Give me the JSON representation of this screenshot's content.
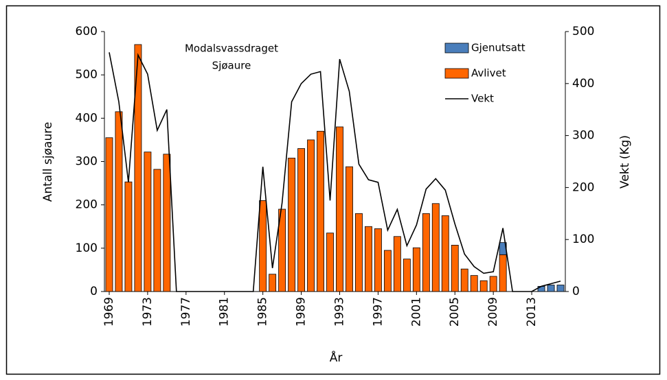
{
  "chart_data": {
    "type": "bar",
    "annotation": [
      "Modalsvassdraget",
      "Sjøaure"
    ],
    "x_label": "År",
    "y_label": "Antall sjøaure",
    "y2_label": "Vekt (Kg)",
    "x": [
      1969,
      1970,
      1971,
      1972,
      1973,
      1974,
      1975,
      1976,
      1977,
      1978,
      1979,
      1980,
      1981,
      1982,
      1983,
      1984,
      1985,
      1986,
      1987,
      1988,
      1989,
      1990,
      1991,
      1992,
      1993,
      1994,
      1995,
      1996,
      1997,
      1998,
      1999,
      2000,
      2001,
      2002,
      2003,
      2004,
      2005,
      2006,
      2007,
      2008,
      2009,
      2010,
      2011,
      2012,
      2013,
      2014,
      2015,
      2016
    ],
    "xlim": [
      1968.5,
      2016.5
    ],
    "xticks": [
      1969,
      1973,
      1977,
      1981,
      1985,
      1989,
      1993,
      1997,
      2001,
      2005,
      2009,
      2013
    ],
    "ylim": [
      0,
      600
    ],
    "yticks": [
      0,
      100,
      200,
      300,
      400,
      500,
      600
    ],
    "y2lim": [
      0,
      500
    ],
    "y2ticks": [
      0,
      100,
      200,
      300,
      400,
      500
    ],
    "series": [
      {
        "name": "Gjenutsatt",
        "color": "#4a7ebb",
        "kind": "bar",
        "values": [
          0,
          0,
          0,
          0,
          0,
          0,
          0,
          0,
          0,
          0,
          0,
          0,
          0,
          0,
          0,
          0,
          0,
          0,
          0,
          0,
          0,
          0,
          0,
          0,
          0,
          0,
          0,
          0,
          0,
          0,
          0,
          0,
          0,
          0,
          0,
          0,
          0,
          0,
          0,
          0,
          0,
          28,
          0,
          0,
          0,
          12,
          15,
          15
        ]
      },
      {
        "name": "Avlivet",
        "color": "#ff6600",
        "kind": "bar",
        "values": [
          355,
          415,
          253,
          570,
          322,
          282,
          317,
          0,
          0,
          0,
          0,
          0,
          0,
          0,
          0,
          0,
          210,
          40,
          190,
          308,
          330,
          350,
          370,
          135,
          380,
          288,
          180,
          150,
          145,
          95,
          127,
          75,
          101,
          180,
          203,
          175,
          107,
          52,
          37,
          25,
          35,
          85,
          0,
          0,
          0,
          0,
          0,
          0
        ]
      },
      {
        "name": "Vekt",
        "color": "#000000",
        "kind": "line",
        "axis": "y2",
        "values": [
          460,
          365,
          210,
          455,
          418,
          310,
          350,
          0,
          0,
          0,
          0,
          0,
          0,
          0,
          0,
          0,
          240,
          45,
          170,
          365,
          400,
          418,
          423,
          175,
          447,
          385,
          245,
          215,
          210,
          118,
          158,
          88,
          128,
          197,
          217,
          195,
          130,
          72,
          48,
          35,
          38,
          122,
          0,
          0,
          0,
          10,
          15,
          20
        ]
      }
    ]
  }
}
